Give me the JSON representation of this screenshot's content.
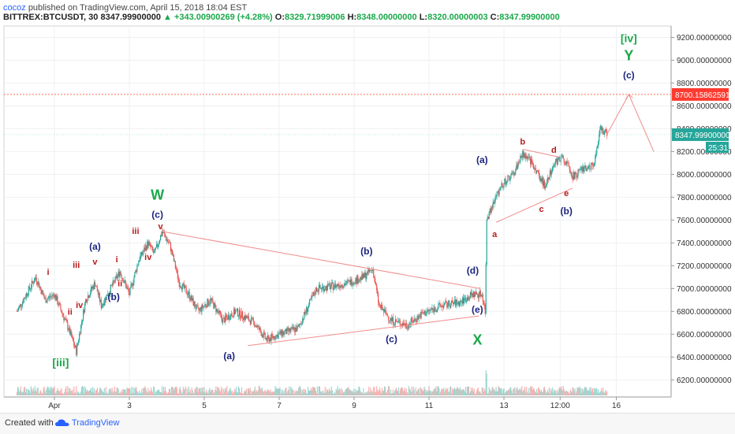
{
  "header": {
    "author": "cocoz",
    "published_text": "published on TradingView.com, April 15, 2018 18:04 EST",
    "symbol": "BITTREX:BTCUSDT, 30",
    "last": "8347.99900000",
    "change": "+343.00900269 (+4.28%)",
    "o_label": "O:",
    "o_value": "8329.71999006",
    "h_label": "H:",
    "h_value": "8348.00000000",
    "l_label": "L:",
    "l_value": "8320.00000003",
    "c_label": "C:",
    "c_value": "8347.99900000"
  },
  "footer": {
    "created_with": "Created with",
    "brand": "TradingView"
  },
  "colors": {
    "up": "#26a69a",
    "down": "#ef5350",
    "wave_blue": "#1a237e",
    "wave_red": "#b71c1c",
    "wave_green": "#1aa84a",
    "trendline": "#f28b8b",
    "target_line": "#ff6f4f",
    "target_badge": "#ff3b30",
    "price_badge": "#26a69a",
    "grid": "#eef0f3"
  },
  "chart_data": {
    "type": "candlestick",
    "x_ticks": [
      "Apr",
      "3",
      "5",
      "7",
      "9",
      "11",
      "13",
      "12:00",
      "16"
    ],
    "y_ticks": [
      "9200.00000000",
      "9000.00000000",
      "8800.00000000",
      "8600.00000000",
      "8400.00000000",
      "8200.00000000",
      "8000.00000000",
      "7800.00000000",
      "7600.00000000",
      "7400.00000000",
      "7200.00000000",
      "7000.00000000",
      "6800.00000000",
      "6600.00000000",
      "6400.00000000",
      "6200.00000000"
    ],
    "ylim": [
      6050,
      9300
    ],
    "price_path": [
      [
        "2018-03-31 00:00",
        6800
      ],
      [
        "2018-03-31 12:00",
        7100
      ],
      [
        "2018-03-31 18:00",
        6900
      ],
      [
        "2018-04-01 00:00",
        6950
      ],
      [
        "2018-04-01 09:00",
        6650
      ],
      [
        "2018-04-01 14:00",
        6450
      ],
      [
        "2018-04-01 20:00",
        6900
      ],
      [
        "2018-04-02 02:00",
        7050
      ],
      [
        "2018-04-02 06:00",
        6850
      ],
      [
        "2018-04-02 12:00",
        7000
      ],
      [
        "2018-04-02 18:00",
        7150
      ],
      [
        "2018-04-03 00:00",
        6950
      ],
      [
        "2018-04-03 06:00",
        7250
      ],
      [
        "2018-04-03 12:00",
        7400
      ],
      [
        "2018-04-03 16:00",
        7300
      ],
      [
        "2018-04-03 21:00",
        7500
      ],
      [
        "2018-04-04 02:00",
        7380
      ],
      [
        "2018-04-04 08:00",
        7050
      ],
      [
        "2018-04-04 14:00",
        6950
      ],
      [
        "2018-04-04 20:00",
        6800
      ],
      [
        "2018-04-05 04:00",
        6900
      ],
      [
        "2018-04-05 12:00",
        6720
      ],
      [
        "2018-04-05 20:00",
        6800
      ],
      [
        "2018-04-06 08:00",
        6700
      ],
      [
        "2018-04-06 16:00",
        6550
      ],
      [
        "2018-04-07 00:00",
        6600
      ],
      [
        "2018-04-07 12:00",
        6650
      ],
      [
        "2018-04-08 00:00",
        7000
      ],
      [
        "2018-04-08 10:00",
        7020
      ],
      [
        "2018-04-08 20:00",
        7050
      ],
      [
        "2018-04-09 06:00",
        7100
      ],
      [
        "2018-04-09 12:00",
        7170
      ],
      [
        "2018-04-09 16:00",
        6850
      ],
      [
        "2018-04-10 00:00",
        6720
      ],
      [
        "2018-04-10 10:00",
        6680
      ],
      [
        "2018-04-10 20:00",
        6780
      ],
      [
        "2018-04-11 08:00",
        6850
      ],
      [
        "2018-04-11 20:00",
        6880
      ],
      [
        "2018-04-12 04:00",
        6950
      ],
      [
        "2018-04-12 10:00",
        6950
      ],
      [
        "2018-04-12 12:00",
        6800
      ],
      [
        "2018-04-12 13:00",
        7600
      ],
      [
        "2018-04-12 16:00",
        7700
      ],
      [
        "2018-04-12 22:00",
        7900
      ],
      [
        "2018-04-13 06:00",
        8000
      ],
      [
        "2018-04-13 12:00",
        8180
      ],
      [
        "2018-04-13 18:00",
        8100
      ],
      [
        "2018-04-14 02:00",
        7900
      ],
      [
        "2018-04-14 08:00",
        8100
      ],
      [
        "2018-04-14 14:00",
        8150
      ],
      [
        "2018-04-14 20:00",
        7980
      ],
      [
        "2018-04-15 04:00",
        8050
      ],
      [
        "2018-04-15 10:00",
        8100
      ],
      [
        "2018-04-15 14:00",
        8400
      ],
      [
        "2018-04-15 18:00",
        8347.999
      ]
    ],
    "annotations": [
      {
        "text": "[iii]",
        "color": "green",
        "date": "2018-04-01 04:00",
        "price": 6320
      },
      {
        "text": "i",
        "color": "red",
        "date": "2018-03-31 20:00",
        "price": 7120
      },
      {
        "text": "ii",
        "color": "red",
        "date": "2018-04-01 10:00",
        "price": 6770
      },
      {
        "text": "iii",
        "color": "red",
        "date": "2018-04-01 14:00",
        "price": 7180
      },
      {
        "text": "iv",
        "color": "red",
        "date": "2018-04-01 16:00",
        "price": 6830
      },
      {
        "text": "v",
        "color": "red",
        "date": "2018-04-02 02:00",
        "price": 7210
      },
      {
        "text": "(a)",
        "color": "blue",
        "date": "2018-04-02 02:00",
        "price": 7340
      },
      {
        "text": "(b)",
        "color": "blue",
        "date": "2018-04-02 14:00",
        "price": 6900
      },
      {
        "text": "i",
        "color": "red",
        "date": "2018-04-02 16:00",
        "price": 7230
      },
      {
        "text": "ii",
        "color": "red",
        "date": "2018-04-02 18:00",
        "price": 7020
      },
      {
        "text": "iii",
        "color": "red",
        "date": "2018-04-03 04:00",
        "price": 7480
      },
      {
        "text": "iv",
        "color": "red",
        "date": "2018-04-03 12:00",
        "price": 7250
      },
      {
        "text": "v",
        "color": "red",
        "date": "2018-04-03 20:00",
        "price": 7520
      },
      {
        "text": "(c)",
        "color": "blue",
        "date": "2018-04-03 18:00",
        "price": 7620
      },
      {
        "text": "W",
        "color": "green",
        "date": "2018-04-03 18:00",
        "price": 7780
      },
      {
        "text": "(a)",
        "color": "blue",
        "date": "2018-04-05 16:00",
        "price": 6380
      },
      {
        "text": "(b)",
        "color": "blue",
        "date": "2018-04-09 08:00",
        "price": 7300
      },
      {
        "text": "(c)",
        "color": "blue",
        "date": "2018-04-10 00:00",
        "price": 6530
      },
      {
        "text": "(d)",
        "color": "blue",
        "date": "2018-04-12 04:00",
        "price": 7130
      },
      {
        "text": "(e)",
        "color": "blue",
        "date": "2018-04-12 07:00",
        "price": 6790
      },
      {
        "text": "X",
        "color": "green",
        "date": "2018-04-12 07:00",
        "price": 6510
      },
      {
        "text": "a",
        "color": "red",
        "date": "2018-04-12 18:00",
        "price": 7450
      },
      {
        "text": "(a)",
        "color": "blue",
        "date": "2018-04-12 10:00",
        "price": 8100
      },
      {
        "text": "b",
        "color": "red",
        "date": "2018-04-13 12:00",
        "price": 8260
      },
      {
        "text": "c",
        "color": "red",
        "date": "2018-04-14 00:00",
        "price": 7670
      },
      {
        "text": "d",
        "color": "red",
        "date": "2018-04-14 08:00",
        "price": 8190
      },
      {
        "text": "e",
        "color": "red",
        "date": "2018-04-14 16:00",
        "price": 7810
      },
      {
        "text": "(b)",
        "color": "blue",
        "date": "2018-04-14 16:00",
        "price": 7650
      },
      {
        "text": "(c)",
        "color": "blue",
        "date": "2018-04-16 08:00",
        "price": 8840
      },
      {
        "text": "Y",
        "color": "green",
        "date": "2018-04-16 08:00",
        "price": 9000
      },
      {
        "text": "[iv]",
        "color": "green",
        "date": "2018-04-16 08:00",
        "price": 9160
      }
    ],
    "trendlines": [
      {
        "from": [
          "2018-04-03 21:00",
          7500
        ],
        "to": [
          "2018-04-12 09:00",
          7000
        ]
      },
      {
        "from": [
          "2018-04-06 04:00",
          6500
        ],
        "to": [
          "2018-04-12 08:00",
          6760
        ]
      },
      {
        "from": [
          "2018-04-12 19:00",
          7580
        ],
        "to": [
          "2018-04-14 20:00",
          7880
        ]
      },
      {
        "from": [
          "2018-04-13 12:00",
          8220
        ],
        "to": [
          "2018-04-14 12:00",
          8150
        ]
      }
    ],
    "projection": [
      [
        "2018-04-15 18:00",
        8350
      ],
      [
        "2018-04-16 08:00",
        8700
      ],
      [
        "2018-04-17 00:00",
        8200
      ]
    ],
    "target_level": 8700.15862591,
    "target_label": "8700.15862591",
    "last_price_label": "8347.99900000",
    "countdown": "25:31"
  }
}
